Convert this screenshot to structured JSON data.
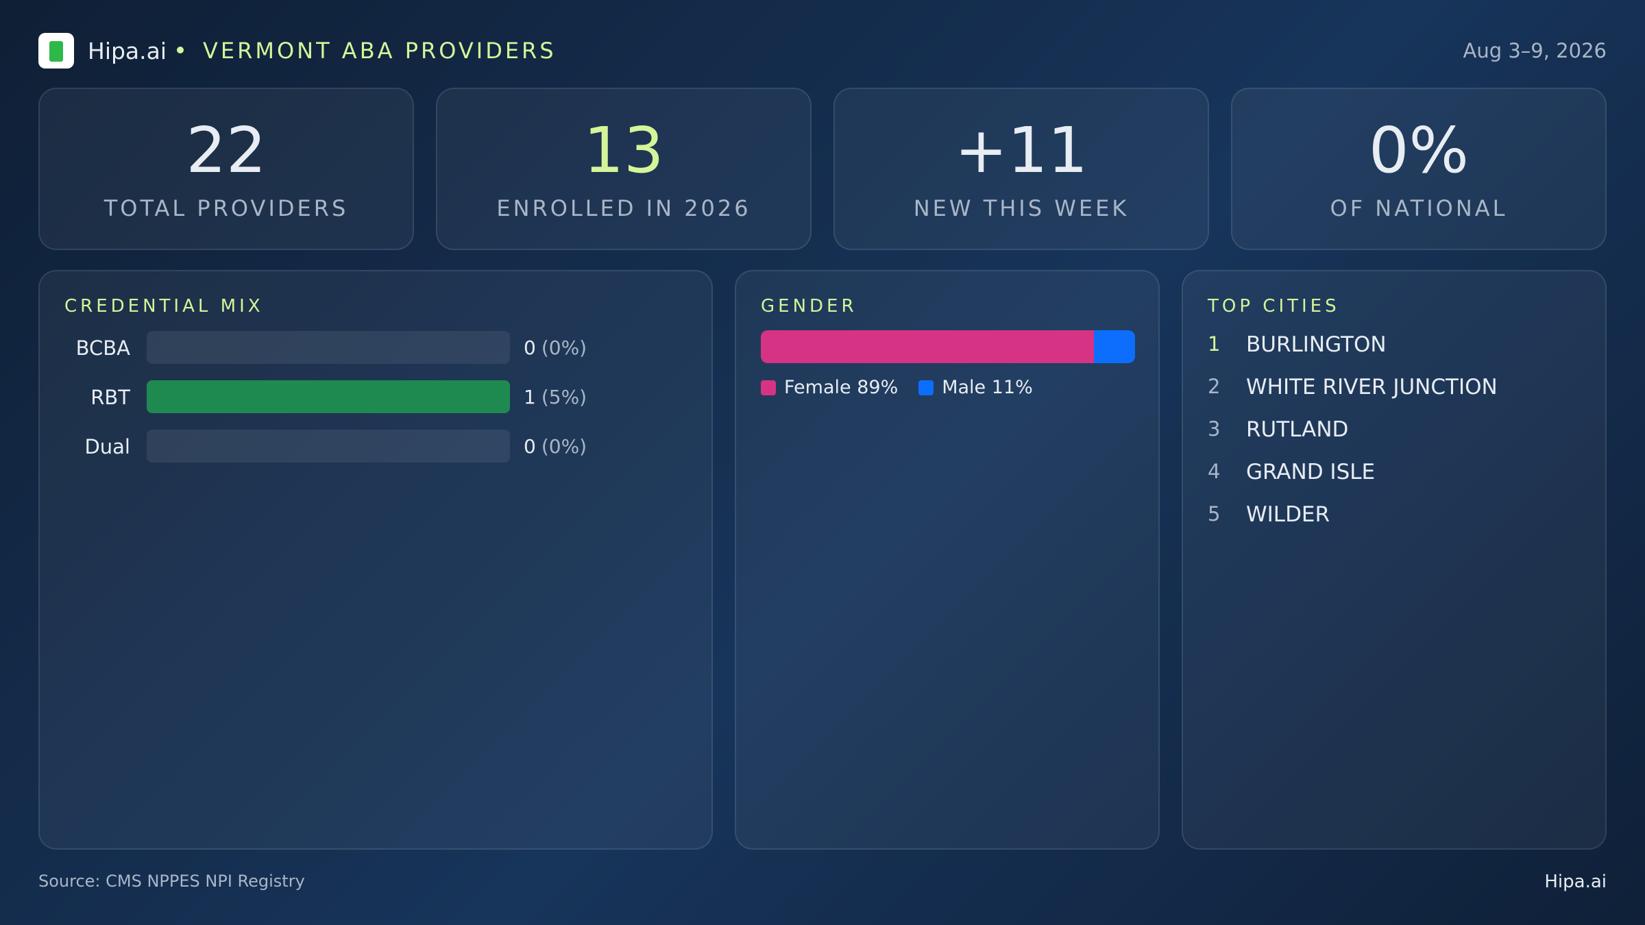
{
  "header": {
    "brand": "Hipa.ai",
    "title": "VERMONT ABA PROVIDERS",
    "date": "Aug 3–9, 2026"
  },
  "stats": [
    {
      "value": 22,
      "label": "TOTAL PROVIDERS"
    },
    {
      "value": 13,
      "label": "ENROLLED IN 2026"
    },
    {
      "value": "+11",
      "label": "NEW THIS WEEK"
    },
    {
      "value": "0%",
      "label": "OF NATIONAL"
    }
  ],
  "credential_mix": {
    "title": "CREDENTIAL MIX",
    "color": "#1f8a50",
    "rows": [
      {
        "label": "BCBA",
        "count": 0,
        "share": "(0%)"
      },
      {
        "label": "RBT",
        "count": 1,
        "share": "(5%)"
      },
      {
        "label": "Dual",
        "count": 0,
        "share": "(0%)"
      }
    ]
  },
  "gender": {
    "title": "GENDER",
    "segments": [
      {
        "name": "Female",
        "value": 89,
        "label": "Female 89%",
        "color": "#d63384"
      },
      {
        "name": "Male",
        "value": 11,
        "label": "Male 11%",
        "color": "#0d6efd"
      }
    ]
  },
  "top_cities": {
    "title": "TOP CITIES",
    "items": [
      {
        "rank": 1,
        "name": "BURLINGTON"
      },
      {
        "rank": 2,
        "name": "WHITE RIVER JUNCTION"
      },
      {
        "rank": 3,
        "name": "RUTLAND"
      },
      {
        "rank": 4,
        "name": "GRAND ISLE"
      },
      {
        "rank": 5,
        "name": "WILDER"
      }
    ]
  },
  "footer": {
    "source": "Source: CMS NPPES NPI Registry",
    "brand": "Hipa.ai"
  }
}
